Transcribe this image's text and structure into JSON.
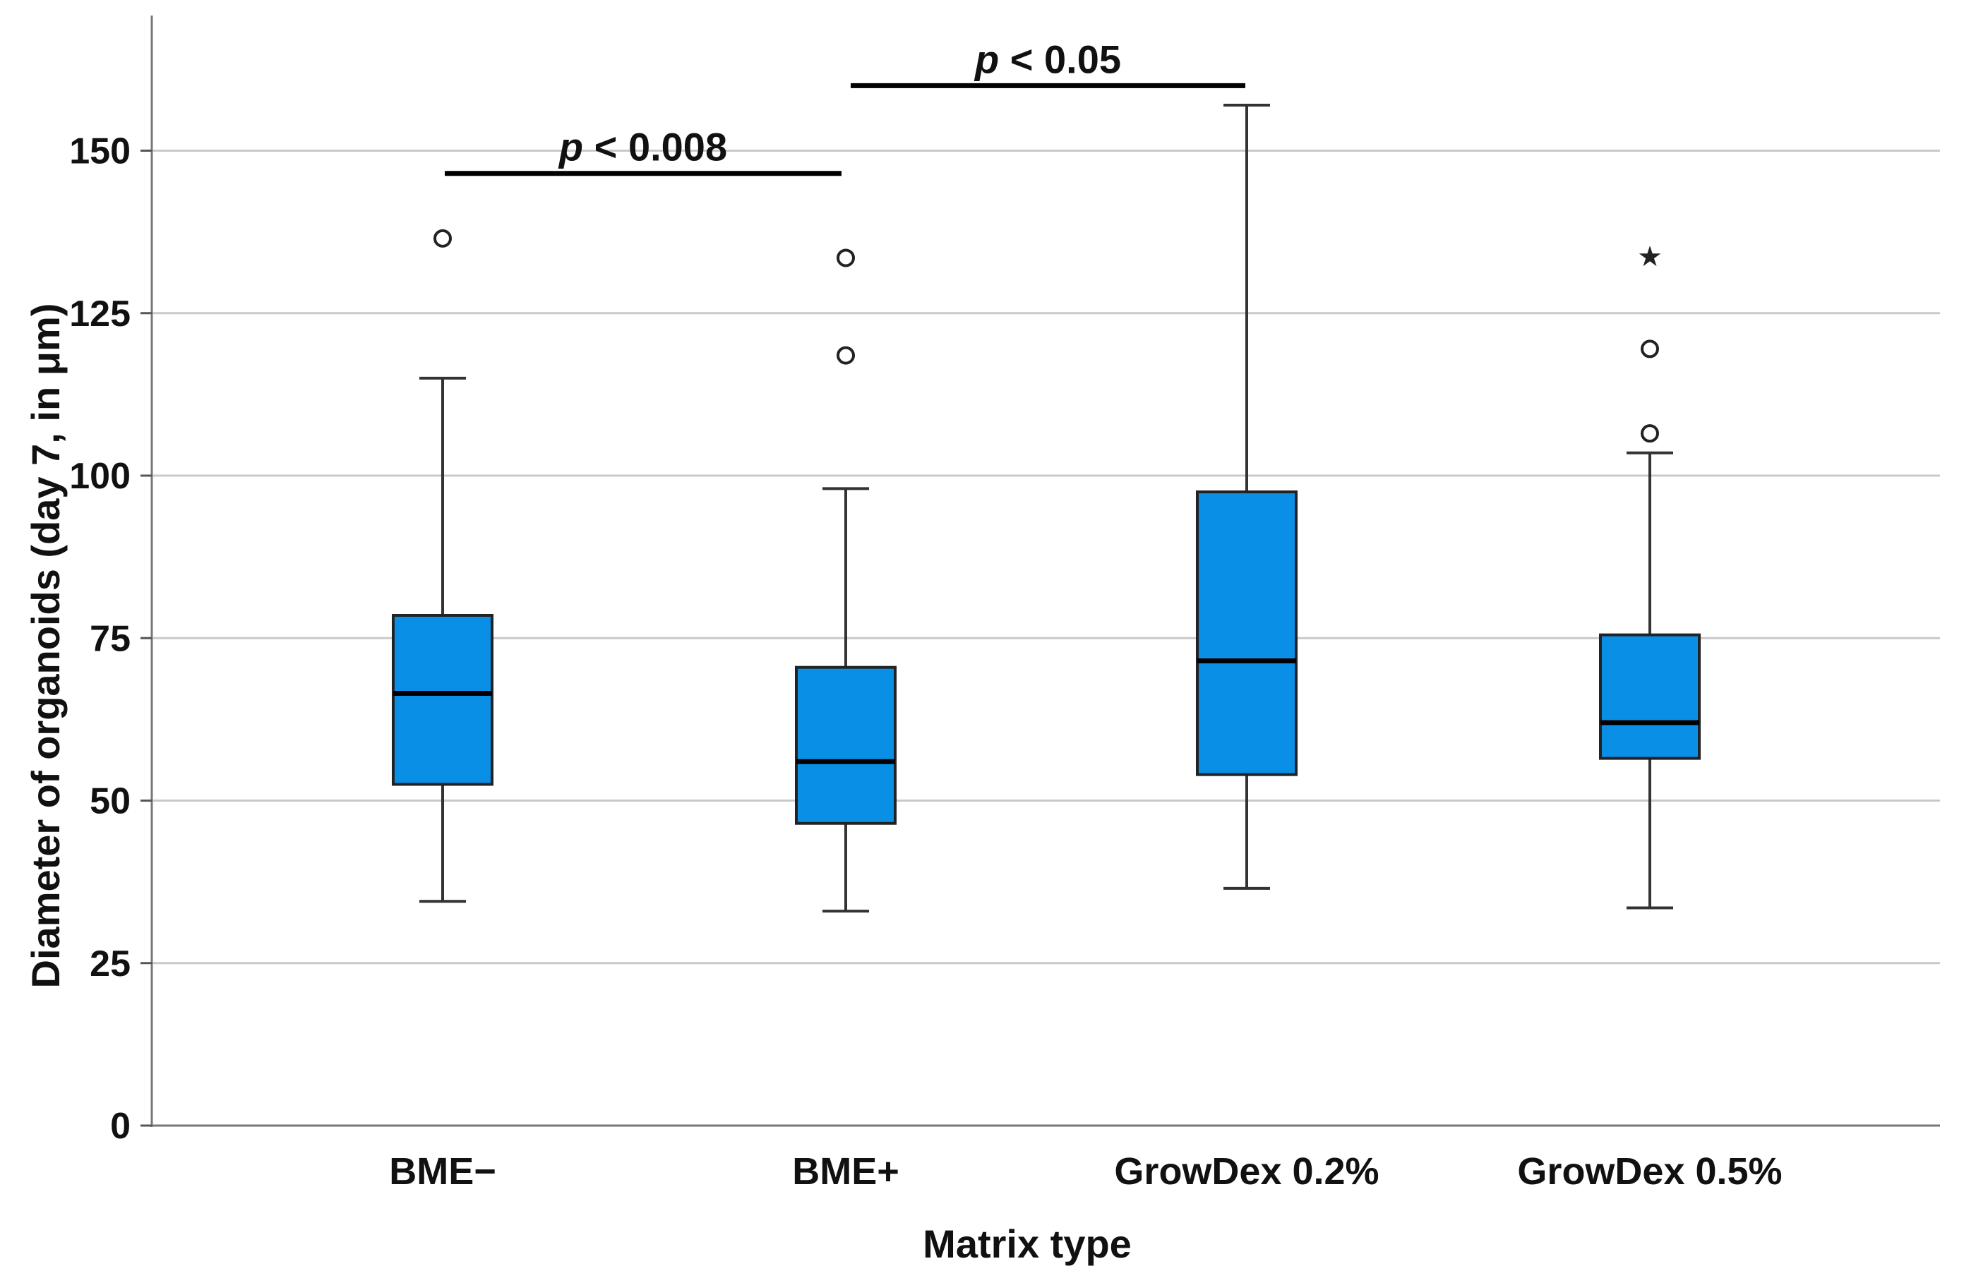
{
  "chart_data": {
    "type": "box",
    "title": "",
    "xlabel": "Matrix type",
    "ylabel": "Diameter of organoids (day 7, in μm)",
    "ylim": [
      0,
      170
    ],
    "yticks": [
      0,
      25,
      50,
      75,
      100,
      125,
      150
    ],
    "grid": true,
    "categories": [
      "BME−",
      "BME+",
      "GrowDex 0.2%",
      "GrowDex 0.5%"
    ],
    "box_color": "#0a8fe6",
    "boxes": [
      {
        "category": "BME−",
        "whisker_low": 34.5,
        "q1": 52.5,
        "median": 66.5,
        "q3": 78.5,
        "whisker_high": 115,
        "outliers": [
          136.5
        ],
        "extremes": []
      },
      {
        "category": "BME+",
        "whisker_low": 33,
        "q1": 46.5,
        "median": 56,
        "q3": 70.5,
        "whisker_high": 98,
        "outliers": [
          118.5,
          133.5
        ],
        "extremes": []
      },
      {
        "category": "GrowDex 0.2%",
        "whisker_low": 36.5,
        "q1": 54,
        "median": 71.5,
        "q3": 97.5,
        "whisker_high": 157,
        "outliers": [],
        "extremes": []
      },
      {
        "category": "GrowDex 0.5%",
        "whisker_low": 33.5,
        "q1": 56.5,
        "median": 62,
        "q3": 75.5,
        "whisker_high": 103.5,
        "outliers": [
          106.5,
          119.5
        ],
        "extremes": [
          134
        ]
      }
    ],
    "significance": [
      {
        "from": 0,
        "to": 1,
        "y": 146.5,
        "p_symbol": "p",
        "text": " < 0.008"
      },
      {
        "from": 1,
        "to": 2,
        "y": 160,
        "p_symbol": "p",
        "text": " < 0.05"
      }
    ]
  }
}
